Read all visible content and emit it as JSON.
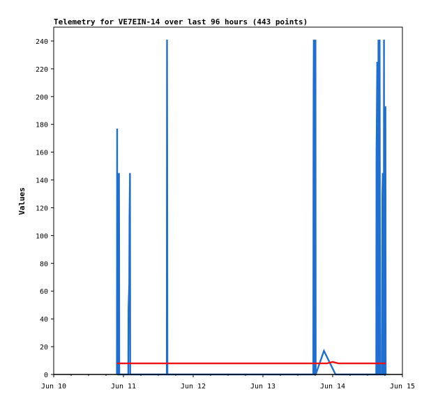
{
  "chart_data": {
    "type": "line",
    "title": "Telemetry for VE7EIN-14 over last 96 hours (443 points)",
    "xlabel": "",
    "ylabel": "Values",
    "x_ticks": [
      "Jun 10",
      "Jun 11",
      "Jun 12",
      "Jun 13",
      "Jun 14",
      "Jun 15"
    ],
    "y_ticks": [
      0,
      20,
      40,
      60,
      80,
      100,
      120,
      140,
      160,
      180,
      200,
      220,
      240
    ],
    "xlim": [
      "Jun 10",
      "Jun 15"
    ],
    "ylim": [
      0,
      250
    ],
    "grid": false,
    "series": [
      {
        "color": "#1f6fd0",
        "points": [
          [
            "2024-06-10T21:45",
            0
          ],
          [
            "2024-06-10T21:50",
            177
          ],
          [
            "2024-06-10T21:52",
            80
          ],
          [
            "2024-06-10T21:55",
            145
          ],
          [
            "2024-06-10T22:05",
            65
          ],
          [
            "2024-06-10T22:10",
            0
          ],
          [
            "2024-06-10T22:25",
            0
          ],
          [
            "2024-06-10T22:28",
            145
          ],
          [
            "2024-06-10T22:31",
            98
          ],
          [
            "2024-06-10T22:34",
            0
          ],
          [
            "2024-06-11T01:40",
            0
          ],
          [
            "2024-06-11T01:45",
            48
          ],
          [
            "2024-06-11T02:00",
            65
          ],
          [
            "2024-06-11T02:05",
            113
          ],
          [
            "2024-06-11T02:15",
            145
          ],
          [
            "2024-06-11T02:20",
            0
          ],
          [
            "2024-06-11T14:55",
            0
          ],
          [
            "2024-06-11T15:00",
            241
          ],
          [
            "2024-06-11T15:05",
            121
          ],
          [
            "2024-06-11T15:08",
            0
          ],
          [
            "2024-06-13T17:20",
            0
          ],
          [
            "2024-06-13T17:23",
            145
          ],
          [
            "2024-06-13T17:26",
            208
          ],
          [
            "2024-06-13T17:30",
            241
          ],
          [
            "2024-06-13T17:35",
            225
          ],
          [
            "2024-06-13T17:40",
            0
          ],
          [
            "2024-06-13T17:45",
            112
          ],
          [
            "2024-06-13T17:50",
            0
          ],
          [
            "2024-06-13T18:00",
            0
          ],
          [
            "2024-06-13T18:05",
            241
          ],
          [
            "2024-06-13T18:10",
            0
          ],
          [
            "2024-06-13T21:00",
            17
          ],
          [
            "2024-06-14T01:00",
            0
          ],
          [
            "2024-06-14T15:00",
            0
          ],
          [
            "2024-06-14T15:05",
            160
          ],
          [
            "2024-06-14T15:10",
            177
          ],
          [
            "2024-06-14T15:20",
            225
          ],
          [
            "2024-06-14T15:25",
            0
          ],
          [
            "2024-06-14T15:40",
            0
          ],
          [
            "2024-06-14T15:45",
            241
          ],
          [
            "2024-06-14T15:50",
            0
          ],
          [
            "2024-06-14T16:05",
            0
          ],
          [
            "2024-06-14T16:10",
            241
          ],
          [
            "2024-06-14T16:15",
            121
          ],
          [
            "2024-06-14T16:20",
            0
          ],
          [
            "2024-06-14T16:55",
            0
          ],
          [
            "2024-06-14T17:00",
            65
          ],
          [
            "2024-06-14T17:05",
            128
          ],
          [
            "2024-06-14T17:15",
            145
          ],
          [
            "2024-06-14T17:25",
            0
          ],
          [
            "2024-06-14T17:35",
            0
          ],
          [
            "2024-06-14T17:40",
            241
          ],
          [
            "2024-06-14T17:45",
            0
          ],
          [
            "2024-06-14T18:05",
            0
          ],
          [
            "2024-06-14T18:10",
            193
          ],
          [
            "2024-06-14T18:15",
            0
          ]
        ]
      },
      {
        "color": "#ee1111",
        "points": [
          [
            "2024-06-10T21:45",
            8
          ],
          [
            "2024-06-10T22:40",
            8
          ],
          [
            "2024-06-11T00:00",
            8
          ],
          [
            "2024-06-13T17:00",
            8
          ],
          [
            "2024-06-13T22:00",
            8
          ],
          [
            "2024-06-14T00:00",
            9
          ],
          [
            "2024-06-14T02:00",
            8
          ],
          [
            "2024-06-14T18:15",
            8
          ]
        ]
      },
      {
        "color": "#000000",
        "points": [
          [
            "2024-06-10T00:00",
            0
          ],
          [
            "2024-06-15T00:00",
            0
          ]
        ]
      }
    ]
  }
}
